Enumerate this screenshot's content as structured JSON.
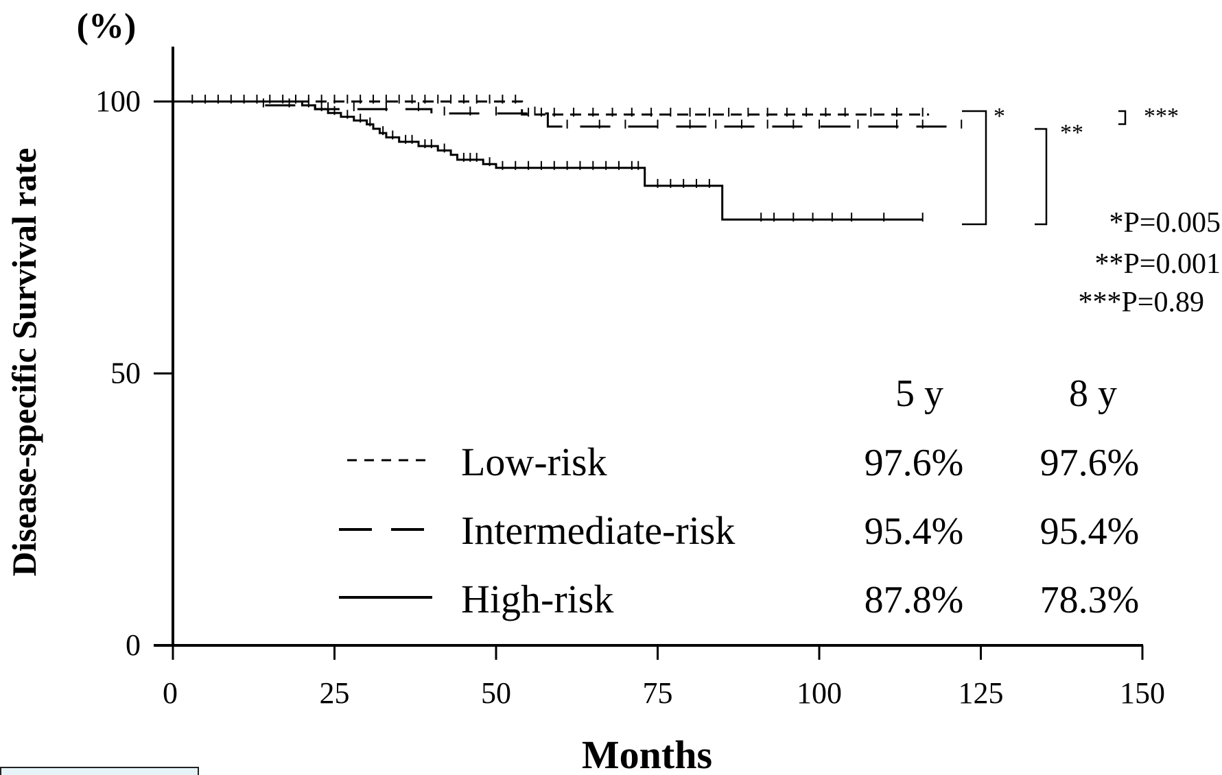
{
  "chart_data": {
    "type": "line",
    "chart_kind": "kaplan-meier survival curve",
    "unit_label": "(%)",
    "xlabel": "Months",
    "ylabel": "Disease-specific Survival rate",
    "xlim": [
      0,
      150
    ],
    "ylim": [
      0,
      100
    ],
    "x_ticks": [
      "0",
      "25",
      "50",
      "75",
      "100",
      "125",
      "150"
    ],
    "y_ticks": [
      "0",
      "50",
      "100"
    ],
    "grid": false,
    "series": [
      {
        "name": "Low-risk",
        "style": "dotted-dash",
        "steps": [
          [
            0,
            100
          ],
          [
            54,
            100
          ],
          [
            54,
            97.6
          ],
          [
            117,
            97.6
          ]
        ],
        "censor_ticks": [
          3,
          5,
          7,
          9,
          11,
          13,
          15,
          17,
          19,
          21,
          23,
          25,
          27,
          29,
          31,
          33,
          35,
          37,
          39,
          41,
          43,
          45,
          47,
          49,
          51,
          53,
          55,
          57,
          59,
          62,
          65,
          68,
          71,
          74,
          77,
          80,
          83,
          86,
          89,
          92,
          95,
          98,
          101,
          104,
          108,
          112,
          116
        ]
      },
      {
        "name": "Intermediate-risk",
        "style": "long-dash",
        "steps": [
          [
            0,
            100
          ],
          [
            12,
            100
          ],
          [
            12,
            99.3
          ],
          [
            22,
            99.3
          ],
          [
            22,
            98.6
          ],
          [
            40,
            98.6
          ],
          [
            40,
            97.8
          ],
          [
            58,
            97.8
          ],
          [
            58,
            95.4
          ],
          [
            122,
            95.4
          ]
        ],
        "censor_ticks": [
          14,
          18,
          24,
          28,
          33,
          38,
          42,
          46,
          50,
          56,
          61,
          66,
          70,
          75,
          80,
          84,
          88,
          92,
          96,
          100,
          106,
          112,
          116,
          122
        ]
      },
      {
        "name": "High-risk",
        "style": "solid",
        "steps": [
          [
            0,
            100
          ],
          [
            20,
            100
          ],
          [
            20,
            99.3
          ],
          [
            22,
            99.3
          ],
          [
            22,
            98.6
          ],
          [
            24,
            98.6
          ],
          [
            24,
            97.9
          ],
          [
            26,
            97.9
          ],
          [
            26,
            97.2
          ],
          [
            28,
            97.2
          ],
          [
            28,
            96.5
          ],
          [
            30,
            96.5
          ],
          [
            30,
            95.8
          ],
          [
            31,
            95.8
          ],
          [
            31,
            95.0
          ],
          [
            32,
            95.0
          ],
          [
            32,
            94.2
          ],
          [
            33,
            94.2
          ],
          [
            33,
            93.4
          ],
          [
            35,
            93.4
          ],
          [
            35,
            92.6
          ],
          [
            38,
            92.6
          ],
          [
            38,
            91.8
          ],
          [
            41,
            91.8
          ],
          [
            41,
            91.0
          ],
          [
            43,
            91.0
          ],
          [
            43,
            90.2
          ],
          [
            44,
            90.2
          ],
          [
            44,
            89.3
          ],
          [
            48,
            89.3
          ],
          [
            48,
            88.5
          ],
          [
            50,
            88.5
          ],
          [
            50,
            87.8
          ],
          [
            73,
            87.8
          ],
          [
            73,
            84.5
          ],
          [
            85,
            84.5
          ],
          [
            85,
            78.3
          ],
          [
            116,
            78.3
          ]
        ],
        "censor_ticks": [
          21,
          23,
          25,
          27,
          29,
          30.5,
          32.5,
          34,
          36,
          37,
          39,
          40,
          42,
          45,
          46,
          47,
          49,
          51,
          53,
          55,
          57,
          59,
          61,
          63,
          65,
          67,
          69,
          71,
          72,
          75,
          77,
          79,
          81,
          83,
          91,
          93,
          96,
          99,
          102,
          105,
          110,
          116
        ]
      }
    ],
    "comparisons": [
      {
        "marker": "*",
        "between": [
          "Low-risk",
          "High-risk"
        ]
      },
      {
        "marker": "**",
        "between": [
          "Intermediate-risk",
          "High-risk"
        ]
      },
      {
        "marker": "***",
        "between": [
          "Low-risk",
          "Intermediate-risk"
        ]
      }
    ],
    "p_values": [
      "*P=0.005",
      "**P=0.001",
      "***P=0.89"
    ],
    "table": {
      "headers": [
        "5 y",
        "8 y"
      ],
      "rows": [
        {
          "name": "Low-risk",
          "values": [
            "97.6%",
            "97.6%"
          ]
        },
        {
          "name": "Intermediate-risk",
          "values": [
            "95.4%",
            "95.4%"
          ]
        },
        {
          "name": "High-risk",
          "values": [
            "87.8%",
            "78.3%"
          ]
        }
      ]
    },
    "legend_position": "inside, lower-center"
  }
}
